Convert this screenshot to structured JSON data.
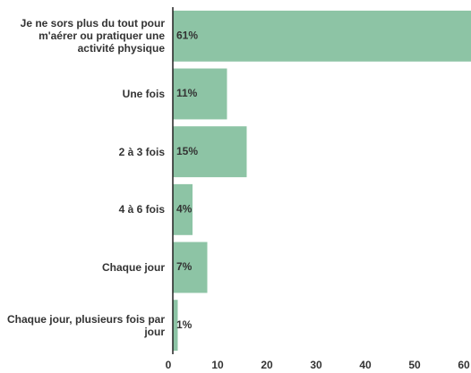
{
  "chart_data": {
    "type": "bar",
    "orientation": "horizontal",
    "categories": [
      "Je ne sors plus du tout pour m'aérer ou pratiquer une activité physique",
      "Une fois",
      "2 à 3 fois",
      "4 à 6 fois",
      "Chaque jour",
      "Chaque jour, plusieurs fois par jour"
    ],
    "values": [
      61,
      11,
      15,
      4,
      7,
      1
    ],
    "value_labels": [
      "61%",
      "11%",
      "15%",
      "4%",
      "7%",
      "1%"
    ],
    "color": "#8dc4a5",
    "xlim": [
      0,
      60
    ],
    "xticks": [
      0,
      10,
      20,
      30,
      40,
      50,
      60
    ],
    "grid": false
  }
}
